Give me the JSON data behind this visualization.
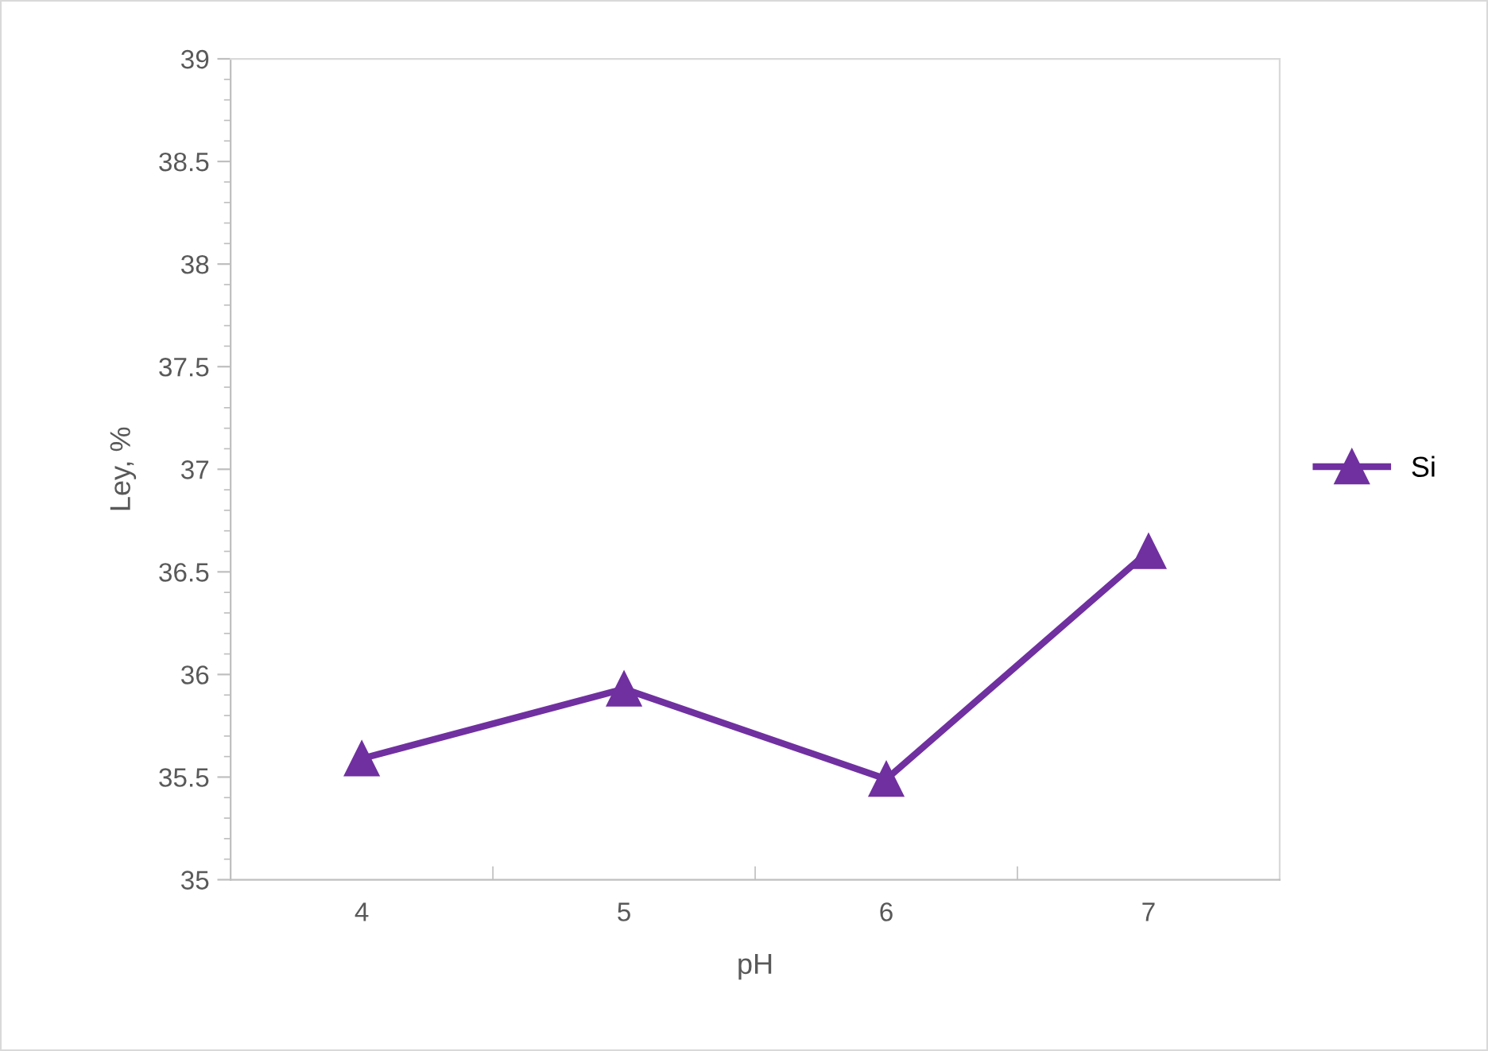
{
  "chart_data": {
    "type": "line",
    "xlabel": "pH",
    "ylabel": "Ley, %",
    "categories": [
      "4",
      "5",
      "6",
      "7"
    ],
    "series": [
      {
        "name": "Si",
        "color": "#7030a0",
        "values": [
          35.59,
          35.93,
          35.49,
          36.6
        ]
      }
    ],
    "ylim": [
      35,
      39
    ],
    "yticks": [
      35,
      35.5,
      36,
      36.5,
      37,
      37.5,
      38,
      38.5,
      39
    ],
    "grid": false,
    "legend": "right",
    "marker": "triangle",
    "line_style": "solid"
  }
}
